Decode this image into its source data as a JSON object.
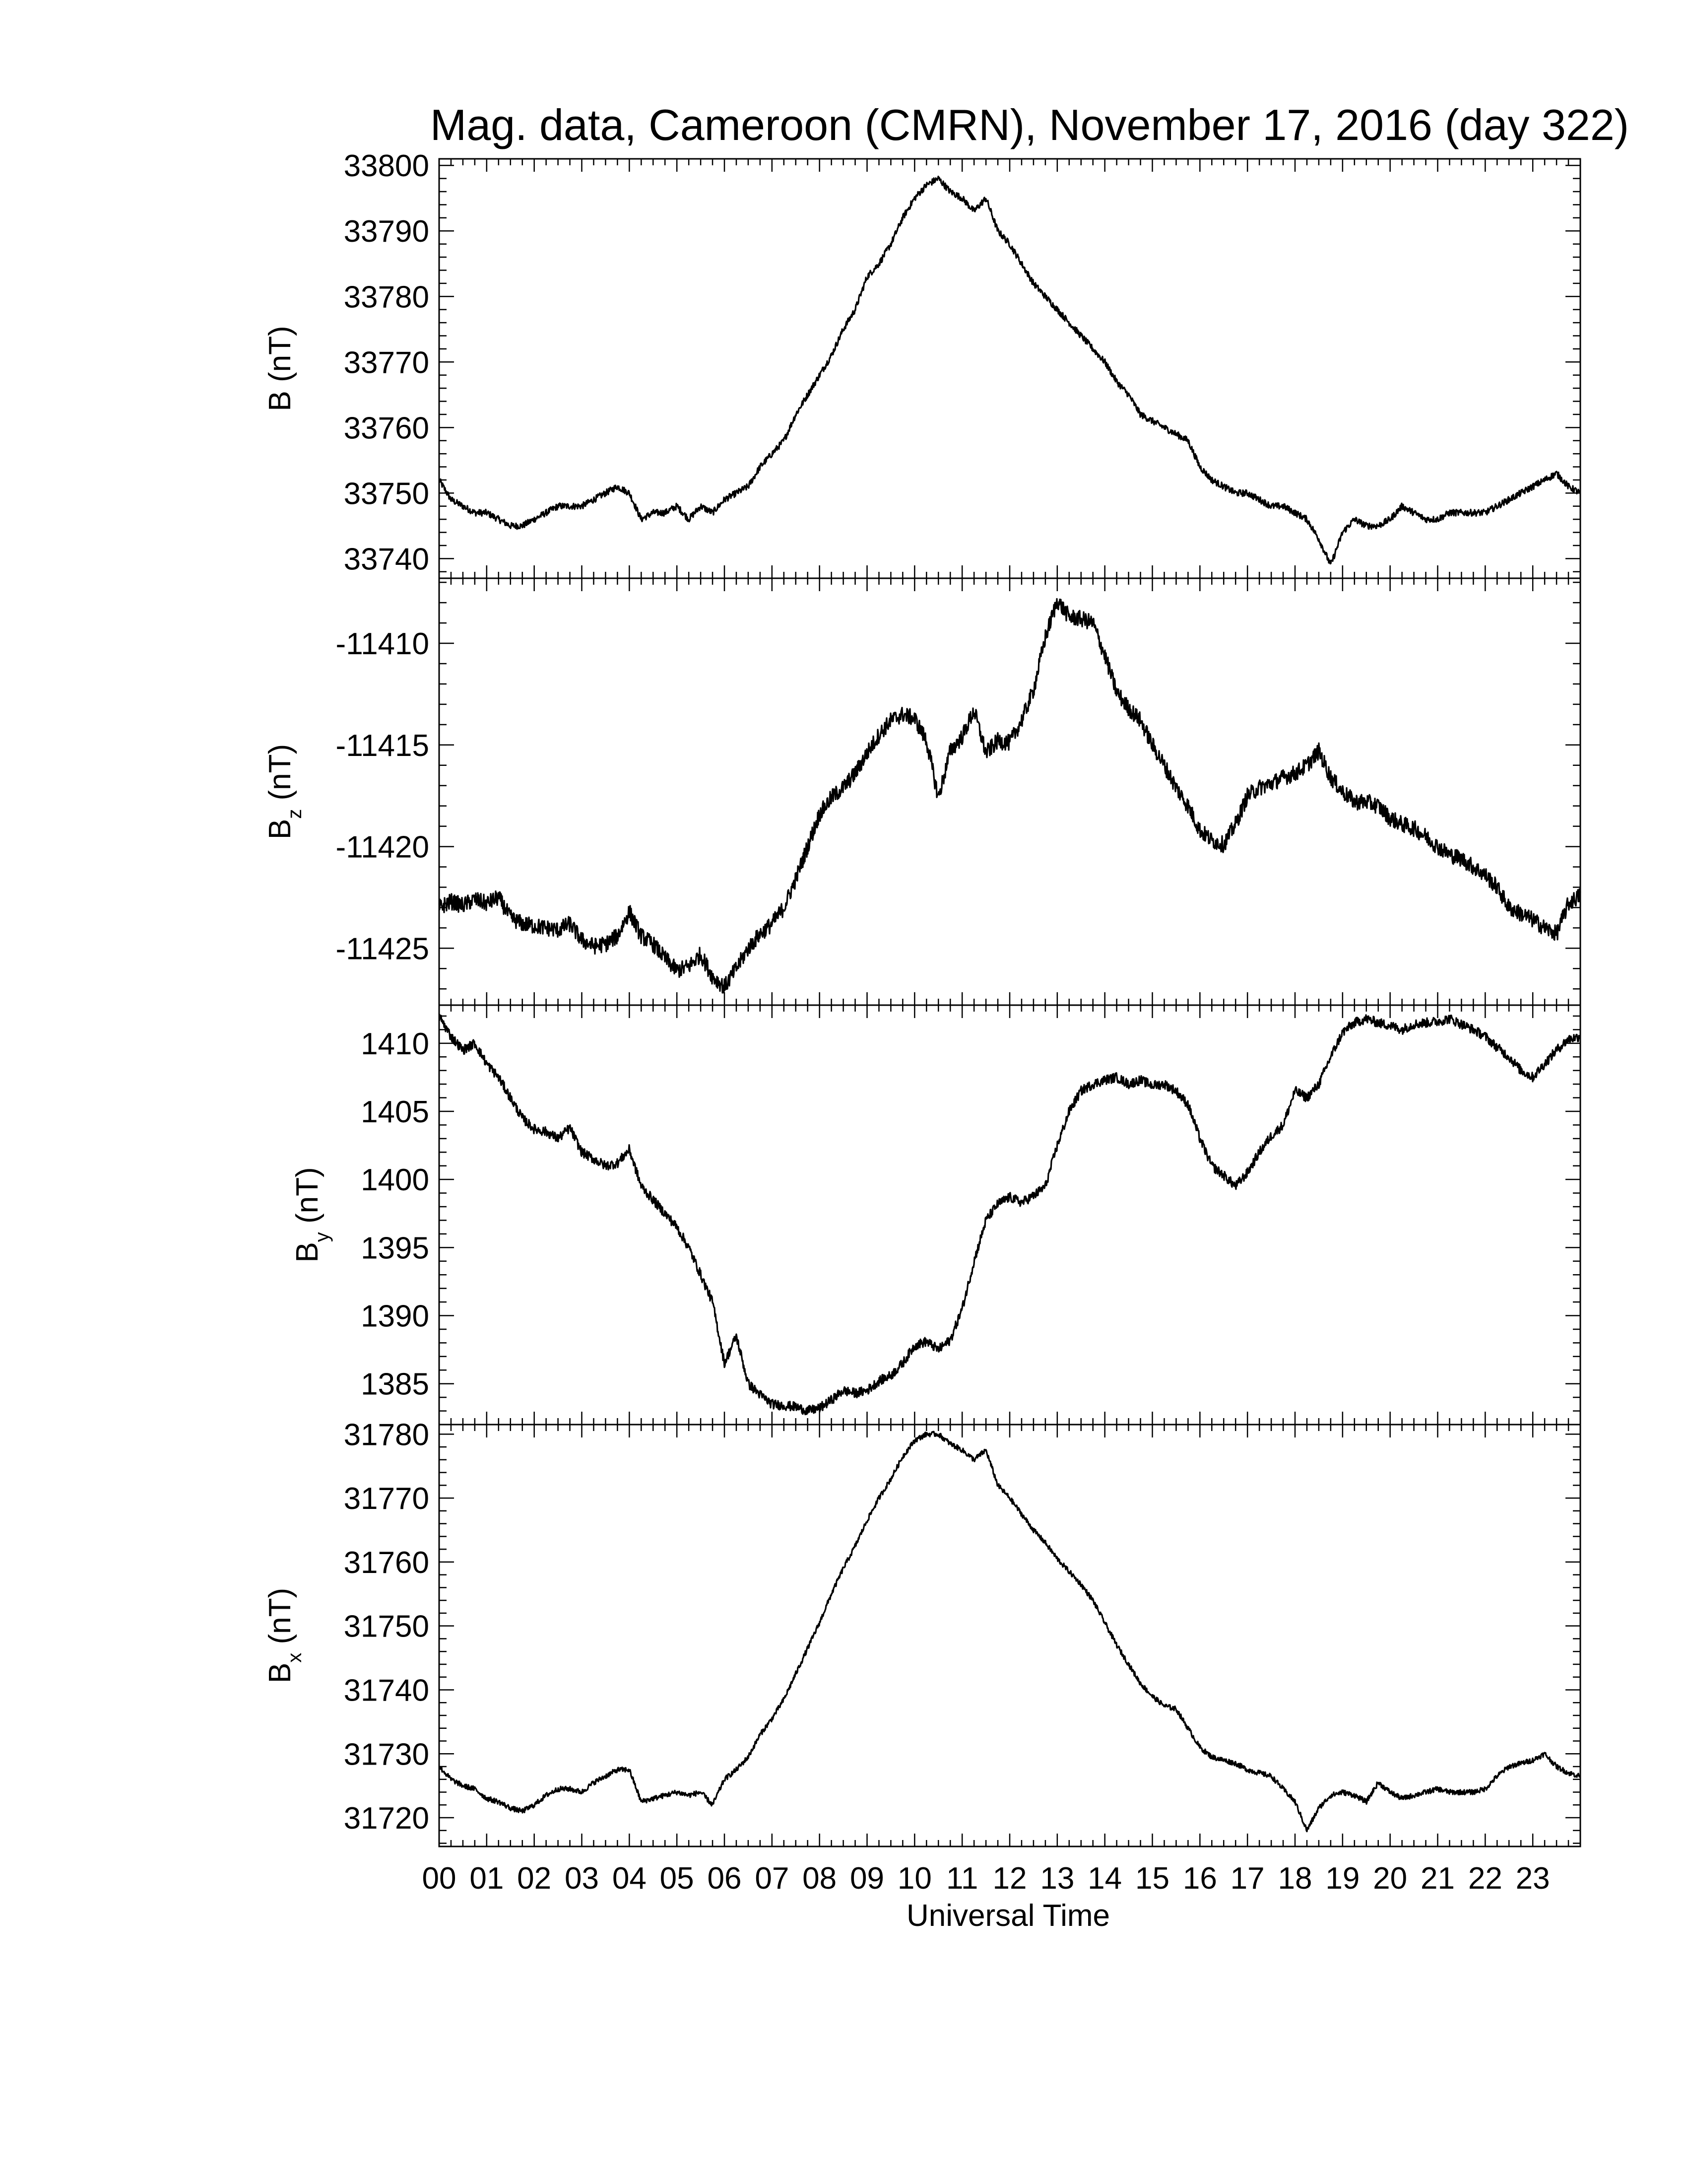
{
  "figure": {
    "title": "Mag. data, Cameroon (CMRN), November 17, 2016 (day 322)",
    "xlabel": "Universal Time",
    "x_tick_labels": [
      "00",
      "01",
      "02",
      "03",
      "04",
      "05",
      "06",
      "07",
      "08",
      "09",
      "10",
      "11",
      "12",
      "13",
      "14",
      "15",
      "16",
      "17",
      "18",
      "19",
      "20",
      "21",
      "22",
      "23"
    ],
    "line_color": "#000000"
  },
  "chart_data": [
    {
      "type": "line",
      "ylabel": "B (nT)",
      "ylabel_main": "B",
      "ylabel_sub": "",
      "ylabel_units": "(nT)",
      "ylim": [
        33737,
        33801
      ],
      "yticks": [
        33740,
        33750,
        33760,
        33770,
        33780,
        33790,
        33800
      ],
      "xlim": [
        0,
        24
      ],
      "x": [
        0,
        0.25,
        0.5,
        0.75,
        1,
        1.25,
        1.5,
        1.75,
        2,
        2.25,
        2.5,
        2.75,
        3,
        3.25,
        3.5,
        3.75,
        4,
        4.25,
        4.5,
        4.75,
        5,
        5.25,
        5.5,
        5.75,
        6,
        6.25,
        6.5,
        6.75,
        7,
        7.25,
        7.5,
        7.75,
        8,
        8.25,
        8.5,
        8.75,
        9,
        9.25,
        9.5,
        9.75,
        10,
        10.25,
        10.5,
        10.75,
        11,
        11.25,
        11.5,
        11.75,
        12,
        12.25,
        12.5,
        12.75,
        13,
        13.25,
        13.5,
        13.75,
        14,
        14.25,
        14.5,
        14.75,
        15,
        15.25,
        15.5,
        15.75,
        16,
        16.25,
        16.5,
        16.75,
        17,
        17.25,
        17.5,
        17.75,
        18,
        18.25,
        18.5,
        18.75,
        19,
        19.25,
        19.5,
        19.75,
        20,
        20.25,
        20.5,
        20.75,
        21,
        21.25,
        21.5,
        21.75,
        22,
        22.25,
        22.5,
        22.75,
        23,
        23.25,
        23.5,
        23.75,
        24
      ],
      "y": [
        33752,
        33749,
        33748,
        33747,
        33747,
        33746,
        33745,
        33745,
        33746,
        33747,
        33748,
        33748,
        33748,
        33749,
        33750,
        33751,
        33750,
        33746,
        33747,
        33747,
        33748,
        33746,
        33748,
        33747,
        33749,
        33750,
        33751,
        33754,
        33756,
        33758,
        33762,
        33765,
        33768,
        33771,
        33775,
        33778,
        33783,
        33785,
        33788,
        33792,
        33795,
        33797,
        33798,
        33796,
        33795,
        33793,
        33795,
        33790,
        33788,
        33785,
        33782,
        33780,
        33778,
        33776,
        33774,
        33772,
        33770,
        33767,
        33765,
        33762,
        33761,
        33760,
        33759,
        33758,
        33754,
        33752,
        33751,
        33750,
        33750,
        33749,
        33748,
        33748,
        33747,
        33746,
        33743,
        33739,
        33744,
        33746,
        33745,
        33745,
        33746,
        33748,
        33747,
        33746,
        33746,
        33747,
        33747,
        33747,
        33747,
        33748,
        33749,
        33750,
        33751,
        33752,
        33753,
        33751,
        33750
      ],
      "noise_amp": 0.5
    },
    {
      "type": "line",
      "ylabel": "Bz (nT)",
      "ylabel_main": "B",
      "ylabel_sub": "z",
      "ylabel_units": "(nT)",
      "ylim": [
        -11427.8,
        -11406.8
      ],
      "yticks": [
        -11425,
        -11420,
        -11415,
        -11410
      ],
      "xlim": [
        0,
        24
      ],
      "x": [
        0,
        0.25,
        0.5,
        0.75,
        1,
        1.25,
        1.5,
        1.75,
        2,
        2.25,
        2.5,
        2.75,
        3,
        3.25,
        3.5,
        3.75,
        4,
        4.25,
        4.5,
        4.75,
        5,
        5.25,
        5.5,
        5.75,
        6,
        6.25,
        6.5,
        6.75,
        7,
        7.25,
        7.5,
        7.75,
        8,
        8.25,
        8.5,
        8.75,
        9,
        9.25,
        9.5,
        9.75,
        10,
        10.25,
        10.5,
        10.75,
        11,
        11.25,
        11.5,
        11.75,
        12,
        12.25,
        12.5,
        12.75,
        13,
        13.25,
        13.5,
        13.75,
        14,
        14.25,
        14.5,
        14.75,
        15,
        15.25,
        15.5,
        15.75,
        16,
        16.25,
        16.5,
        16.75,
        17,
        17.25,
        17.5,
        17.75,
        18,
        18.25,
        18.5,
        18.75,
        19,
        19.25,
        19.5,
        19.75,
        20,
        20.25,
        20.5,
        20.75,
        21,
        21.25,
        21.5,
        21.75,
        22,
        22.25,
        22.5,
        22.75,
        23,
        23.25,
        23.5,
        23.75,
        24
      ],
      "y": [
        -11423,
        -11422.7,
        -11422.9,
        -11422.6,
        -11422.8,
        -11422.5,
        -11423.5,
        -11423.8,
        -11423.9,
        -11424,
        -11424.1,
        -11423.8,
        -11424.6,
        -11424.9,
        -11424.8,
        -11424.4,
        -11423.2,
        -11424.4,
        -11424.8,
        -11425.5,
        -11426.1,
        -11425.9,
        -11425.3,
        -11426.4,
        -11426.9,
        -11426,
        -11425,
        -11424.3,
        -11423.8,
        -11423,
        -11421.6,
        -11420,
        -11418.4,
        -11417.6,
        -11417.1,
        -11416.4,
        -11415.4,
        -11414.5,
        -11413.8,
        -11413.5,
        -11413.7,
        -11414.8,
        -11417.6,
        -11415.3,
        -11414.6,
        -11413.3,
        -11415.4,
        -11414.8,
        -11414.9,
        -11413.8,
        -11412.3,
        -11409.7,
        -11407.9,
        -11408.7,
        -11408.8,
        -11409,
        -11410.6,
        -11412.4,
        -11413.2,
        -11413.8,
        -11415,
        -11416,
        -11417.1,
        -11418,
        -11419.2,
        -11419.7,
        -11419.9,
        -11418.9,
        -11417.5,
        -11417.1,
        -11416.9,
        -11416.6,
        -11416.4,
        -11416,
        -11415.3,
        -11416.6,
        -11417.3,
        -11417.8,
        -11417.8,
        -11418,
        -11418.6,
        -11418.9,
        -11419.1,
        -11419.5,
        -11420,
        -11420.4,
        -11420.6,
        -11421,
        -11421.4,
        -11422,
        -11423,
        -11423.3,
        -11423.6,
        -11424,
        -11424.3,
        -11422.8,
        -11422.4
      ]
    },
    {
      "type": "line",
      "ylabel": "By (nT)",
      "ylabel_main": "B",
      "ylabel_sub": "y",
      "ylabel_units": "(nT)",
      "ylim": [
        1382,
        1412.8
      ],
      "yticks": [
        1385,
        1390,
        1395,
        1400,
        1405,
        1410
      ],
      "xlim": [
        0,
        24
      ],
      "x": [
        0,
        0.25,
        0.5,
        0.75,
        1,
        1.25,
        1.5,
        1.75,
        2,
        2.25,
        2.5,
        2.75,
        3,
        3.25,
        3.5,
        3.75,
        4,
        4.25,
        4.5,
        4.75,
        5,
        5.25,
        5.5,
        5.75,
        6,
        6.25,
        6.5,
        6.75,
        7,
        7.25,
        7.5,
        7.75,
        8,
        8.25,
        8.5,
        8.75,
        9,
        9.25,
        9.5,
        9.75,
        10,
        10.25,
        10.5,
        10.75,
        11,
        11.25,
        11.5,
        11.75,
        12,
        12.25,
        12.5,
        12.75,
        13,
        13.25,
        13.5,
        13.75,
        14,
        14.25,
        14.5,
        14.75,
        15,
        15.25,
        15.5,
        15.75,
        16,
        16.25,
        16.5,
        16.75,
        17,
        17.25,
        17.5,
        17.75,
        18,
        18.25,
        18.5,
        18.75,
        19,
        19.25,
        19.5,
        19.75,
        20,
        20.25,
        20.5,
        20.75,
        21,
        21.25,
        21.5,
        21.75,
        22,
        22.25,
        22.5,
        22.75,
        23,
        23.25,
        23.5,
        23.75,
        24
      ],
      "y": [
        1412,
        1410.5,
        1409.5,
        1410,
        1408.5,
        1407.5,
        1406,
        1404.5,
        1403.7,
        1403.5,
        1403,
        1403.8,
        1402,
        1401.5,
        1401,
        1401.2,
        1402.2,
        1399.5,
        1398.5,
        1397.5,
        1396.5,
        1395,
        1393,
        1391,
        1386.5,
        1388.5,
        1385,
        1384.2,
        1383.5,
        1383.4,
        1383.3,
        1383,
        1383.2,
        1383.8,
        1384.5,
        1384.3,
        1384.5,
        1385.2,
        1385.6,
        1386.5,
        1387.8,
        1388.1,
        1387.5,
        1388.2,
        1390.5,
        1394,
        1397,
        1398.2,
        1398.7,
        1398.3,
        1398.8,
        1399.5,
        1402.5,
        1405,
        1406.5,
        1407,
        1407.3,
        1407.5,
        1407,
        1407.3,
        1406.9,
        1407,
        1406.5,
        1405.5,
        1403,
        1401,
        1400.3,
        1399.5,
        1400.5,
        1402,
        1403.2,
        1404,
        1406.5,
        1406,
        1407,
        1409,
        1410.8,
        1411.5,
        1411.8,
        1411.5,
        1411.3,
        1411,
        1411.4,
        1411.5,
        1411.6,
        1411.8,
        1411.4,
        1411,
        1410.5,
        1409.7,
        1409,
        1408,
        1407.5,
        1408.5,
        1409.5,
        1410.3,
        1410.5
      ],
      "noise_amp": 0.35
    },
    {
      "type": "line",
      "ylabel": "Bx (nT)",
      "ylabel_main": "B",
      "ylabel_sub": "x",
      "ylabel_units": "(nT)",
      "ylim": [
        31715.5,
        31781.5
      ],
      "yticks": [
        31720,
        31730,
        31740,
        31750,
        31760,
        31770,
        31780
      ],
      "xlim": [
        0,
        24
      ],
      "x": [
        0,
        0.25,
        0.5,
        0.75,
        1,
        1.25,
        1.5,
        1.75,
        2,
        2.25,
        2.5,
        2.75,
        3,
        3.25,
        3.5,
        3.75,
        4,
        4.25,
        4.5,
        4.75,
        5,
        5.25,
        5.5,
        5.75,
        6,
        6.25,
        6.5,
        6.75,
        7,
        7.25,
        7.5,
        7.75,
        8,
        8.25,
        8.5,
        8.75,
        9,
        9.25,
        9.5,
        9.75,
        10,
        10.25,
        10.5,
        10.75,
        11,
        11.25,
        11.5,
        11.75,
        12,
        12.25,
        12.5,
        12.75,
        13,
        13.25,
        13.5,
        13.75,
        14,
        14.25,
        14.5,
        14.75,
        15,
        15.25,
        15.5,
        15.75,
        16,
        16.25,
        16.5,
        16.75,
        17,
        17.25,
        17.5,
        17.75,
        18,
        18.25,
        18.5,
        18.75,
        19,
        19.25,
        19.5,
        19.75,
        20,
        20.25,
        20.5,
        20.75,
        21,
        21.25,
        21.5,
        21.75,
        22,
        22.25,
        22.5,
        22.75,
        23,
        23.25,
        23.5,
        23.75,
        24
      ],
      "y": [
        31728,
        31726,
        31725,
        31724.5,
        31723,
        31722.5,
        31721.5,
        31721,
        31722,
        31723.5,
        31724.5,
        31724.5,
        31724,
        31725.5,
        31726.5,
        31727.5,
        31727.5,
        31722.5,
        31723,
        31723.5,
        31724,
        31723.5,
        31724,
        31722,
        31726,
        31727.5,
        31729.5,
        31733,
        31735.5,
        31738.5,
        31742.5,
        31746.5,
        31750.5,
        31755,
        31759,
        31762.5,
        31766.5,
        31770,
        31773,
        31776.5,
        31779,
        31780,
        31780,
        31778.5,
        31777.5,
        31776,
        31777.5,
        31772,
        31770,
        31767.5,
        31765,
        31763,
        31760.5,
        31758.5,
        31756.5,
        31754,
        31750.5,
        31747,
        31744,
        31741,
        31739,
        31737.5,
        31737,
        31734,
        31731,
        31729.5,
        31729,
        31728.5,
        31727.5,
        31727,
        31726.5,
        31724.5,
        31722.5,
        31718,
        31721.5,
        31723.5,
        31724,
        31723.5,
        31722.5,
        31725.5,
        31724,
        31723,
        31723.5,
        31724,
        31724.5,
        31724,
        31724,
        31724,
        31724.5,
        31726.5,
        31728,
        31728.5,
        31729,
        31730,
        31728,
        31727,
        31726.5
      ],
      "noise_amp": 0.4
    }
  ]
}
